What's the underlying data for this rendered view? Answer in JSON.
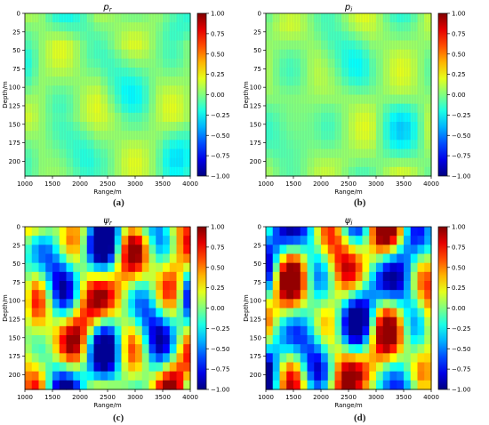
{
  "panels": [
    {
      "id": "a",
      "title": "p_r",
      "title_base": "p",
      "title_sub": "r",
      "caption": "(a)",
      "kind": "pressure",
      "seed": 3
    },
    {
      "id": "b",
      "title": "p_i",
      "title_base": "p",
      "title_sub": "i",
      "caption": "(b)",
      "kind": "pressure",
      "seed": 7
    },
    {
      "id": "c",
      "title": "ψ_r",
      "title_base": "ψ",
      "title_sub": "r",
      "caption": "(c)",
      "kind": "field",
      "seed": 11
    },
    {
      "id": "d",
      "title": "ψ_i",
      "title_base": "ψ",
      "title_sub": "i",
      "caption": "(d)",
      "kind": "field",
      "seed": 19
    }
  ],
  "chart_data": [
    {
      "type": "heatmap",
      "title": "p_r",
      "xlabel": "Range/m",
      "ylabel": "Depth/m",
      "xlim": [
        1000,
        4000
      ],
      "ylim": [
        220,
        0
      ],
      "x_ticks": [
        1000,
        1500,
        2000,
        2500,
        3000,
        3500,
        4000
      ],
      "y_ticks": [
        0,
        25,
        50,
        75,
        100,
        125,
        150,
        175,
        200
      ],
      "colorbar": {
        "min": -1.0,
        "max": 1.0,
        "ticks": [
          "1.00",
          "0.75",
          "0.50",
          "0.25",
          "0.00",
          "−0.25",
          "−0.50",
          "−0.75",
          "−1.00"
        ],
        "colormap": "jet"
      }
    },
    {
      "type": "heatmap",
      "title": "p_i",
      "xlabel": "Range/m",
      "ylabel": "Depth/m",
      "xlim": [
        1000,
        4000
      ],
      "ylim": [
        220,
        0
      ],
      "x_ticks": [
        1000,
        1500,
        2000,
        2500,
        3000,
        3500,
        4000
      ],
      "y_ticks": [
        0,
        25,
        50,
        75,
        100,
        125,
        150,
        175,
        200
      ],
      "colorbar": {
        "min": -1.0,
        "max": 1.0,
        "ticks": [
          "1.00",
          "0.75",
          "0.50",
          "0.25",
          "0.00",
          "−0.25",
          "−0.50",
          "−0.75",
          "−1.00"
        ],
        "colormap": "jet"
      }
    },
    {
      "type": "heatmap",
      "title": "ψ_r",
      "xlabel": "Range/m",
      "ylabel": "Depth/m",
      "xlim": [
        1000,
        4000
      ],
      "ylim": [
        220,
        0
      ],
      "x_ticks": [
        1000,
        1500,
        2000,
        2500,
        3000,
        3500,
        4000
      ],
      "y_ticks": [
        0,
        25,
        50,
        75,
        100,
        125,
        150,
        175,
        200
      ],
      "colorbar": {
        "min": -1.0,
        "max": 1.0,
        "ticks": [
          "1.00",
          "0.75",
          "0.50",
          "0.25",
          "0.00",
          "−0.25",
          "−0.50",
          "−0.75",
          "−1.00"
        ],
        "colormap": "jet"
      }
    },
    {
      "type": "heatmap",
      "title": "ψ_i",
      "xlabel": "Range/m",
      "ylabel": "Depth/m",
      "xlim": [
        1000,
        4000
      ],
      "ylim": [
        220,
        0
      ],
      "x_ticks": [
        1000,
        1500,
        2000,
        2500,
        3000,
        3500,
        4000
      ],
      "y_ticks": [
        0,
        25,
        50,
        75,
        100,
        125,
        150,
        175,
        200
      ],
      "colorbar": {
        "min": -1.0,
        "max": 1.0,
        "ticks": [
          "1.00",
          "0.75",
          "0.50",
          "0.25",
          "0.00",
          "−0.25",
          "−0.50",
          "−0.75",
          "−1.00"
        ],
        "colormap": "jet"
      }
    }
  ]
}
